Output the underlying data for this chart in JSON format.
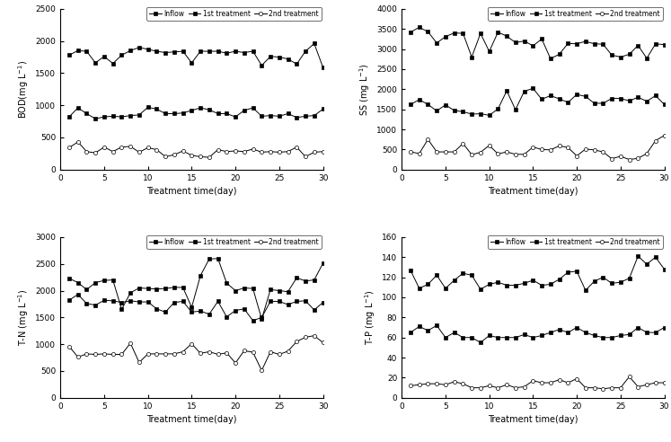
{
  "days": [
    1,
    2,
    3,
    4,
    5,
    6,
    7,
    8,
    9,
    10,
    11,
    12,
    13,
    14,
    15,
    16,
    17,
    18,
    19,
    20,
    21,
    22,
    23,
    24,
    25,
    26,
    27,
    28,
    29,
    30
  ],
  "BOD_inflow": [
    1780,
    1850,
    1840,
    1660,
    1760,
    1650,
    1780,
    1850,
    1900,
    1870,
    1840,
    1820,
    1830,
    1840,
    1660,
    1840,
    1840,
    1840,
    1810,
    1840,
    1820,
    1840,
    1620,
    1760,
    1750,
    1720,
    1640,
    1840,
    1960,
    1590
  ],
  "BOD_1st": [
    820,
    960,
    870,
    790,
    820,
    830,
    820,
    840,
    850,
    970,
    940,
    870,
    870,
    880,
    920,
    960,
    930,
    870,
    870,
    820,
    920,
    960,
    830,
    840,
    830,
    870,
    810,
    830,
    840,
    940
  ],
  "BOD_2nd": [
    340,
    430,
    280,
    260,
    350,
    280,
    350,
    360,
    270,
    340,
    310,
    200,
    230,
    290,
    220,
    200,
    190,
    310,
    280,
    290,
    280,
    320,
    270,
    280,
    270,
    280,
    350,
    200,
    270,
    280
  ],
  "SS_inflow": [
    3420,
    3540,
    3430,
    3150,
    3310,
    3400,
    3390,
    2800,
    3390,
    2940,
    3420,
    3320,
    3160,
    3200,
    3080,
    3250,
    2760,
    2870,
    3140,
    3130,
    3190,
    3130,
    3120,
    2850,
    2800,
    2870,
    3090,
    2770,
    3130,
    3110
  ],
  "SS_1st": [
    1620,
    1740,
    1620,
    1460,
    1610,
    1470,
    1440,
    1380,
    1390,
    1350,
    1510,
    1960,
    1490,
    1950,
    2020,
    1750,
    1840,
    1760,
    1670,
    1870,
    1820,
    1650,
    1650,
    1770,
    1770,
    1710,
    1800,
    1700,
    1840,
    1620
  ],
  "SS_2nd": [
    440,
    400,
    750,
    440,
    440,
    440,
    650,
    370,
    430,
    600,
    390,
    440,
    380,
    380,
    560,
    500,
    490,
    590,
    550,
    340,
    510,
    490,
    440,
    270,
    330,
    250,
    280,
    400,
    720,
    850
  ],
  "TN_inflow": [
    2230,
    2150,
    2020,
    2150,
    2190,
    2200,
    1650,
    1960,
    2050,
    2040,
    2030,
    2040,
    2060,
    2060,
    1690,
    2280,
    2590,
    2600,
    2140,
    2000,
    2050,
    2040,
    1470,
    2020,
    2000,
    1980,
    2240,
    2180,
    2200,
    2510
  ],
  "TN_1st": [
    1820,
    1930,
    1760,
    1730,
    1820,
    1810,
    1780,
    1810,
    1790,
    1790,
    1660,
    1600,
    1780,
    1800,
    1600,
    1620,
    1560,
    1800,
    1510,
    1630,
    1660,
    1440,
    1500,
    1800,
    1800,
    1740,
    1800,
    1810,
    1640,
    1780
  ],
  "TN_2nd": [
    960,
    760,
    820,
    810,
    820,
    810,
    810,
    1020,
    660,
    820,
    820,
    820,
    820,
    860,
    1010,
    830,
    860,
    810,
    840,
    650,
    880,
    850,
    510,
    860,
    810,
    870,
    1050,
    1130,
    1160,
    1030
  ],
  "TP_inflow": [
    127,
    109,
    113,
    122,
    109,
    117,
    124,
    122,
    108,
    113,
    115,
    112,
    112,
    114,
    117,
    112,
    113,
    118,
    125,
    126,
    107,
    116,
    120,
    114,
    115,
    119,
    141,
    133,
    140,
    128
  ],
  "TP_1st": [
    65,
    71,
    67,
    72,
    60,
    65,
    60,
    60,
    55,
    62,
    60,
    60,
    60,
    63,
    60,
    62,
    65,
    68,
    65,
    70,
    65,
    62,
    60,
    60,
    62,
    63,
    70,
    65,
    65,
    70
  ],
  "TP_2nd": [
    12,
    13,
    14,
    14,
    13,
    16,
    14,
    10,
    10,
    12,
    10,
    13,
    10,
    11,
    17,
    15,
    15,
    18,
    15,
    19,
    10,
    10,
    9,
    10,
    10,
    21,
    11,
    13,
    15,
    15
  ],
  "xlabel": "Treatment time(day)",
  "BOD_ylabel": "BOD(mg L$^{-1}$)",
  "SS_ylabel": "SS (mg L$^{-1}$)",
  "TN_ylabel": "T-N (mg L$^{-1}$)",
  "TP_ylabel": "T-P (mg L$^{-1}$)",
  "BOD_ylim": [
    0,
    2500
  ],
  "SS_ylim": [
    0,
    4000
  ],
  "TN_ylim": [
    0,
    3000
  ],
  "TP_ylim": [
    0,
    160
  ],
  "BOD_yticks": [
    0,
    500,
    1000,
    1500,
    2000,
    2500
  ],
  "SS_yticks": [
    0,
    500,
    1000,
    1500,
    2000,
    2500,
    3000,
    3500,
    4000
  ],
  "TN_yticks": [
    0,
    500,
    1000,
    1500,
    2000,
    2500,
    3000
  ],
  "TP_yticks": [
    0,
    20,
    40,
    60,
    80,
    100,
    120,
    140,
    160
  ],
  "legend_labels": [
    "Inflow",
    "1st treatment",
    "2nd treatment"
  ],
  "line_color": "black"
}
